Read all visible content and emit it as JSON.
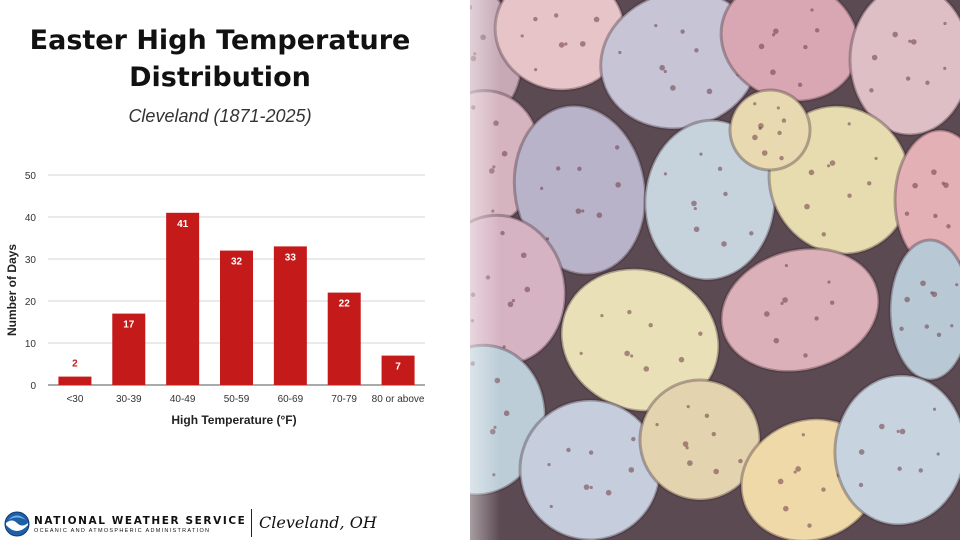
{
  "page": {
    "title_line1": "Easter High Temperature",
    "title_line2": "Distribution",
    "subtitle": "Cleveland (1871-2025)"
  },
  "chart_data": {
    "type": "bar",
    "categories": [
      "<30",
      "30-39",
      "40-49",
      "50-59",
      "60-69",
      "70-79",
      "80 or above"
    ],
    "values": [
      2,
      17,
      41,
      32,
      33,
      22,
      7
    ],
    "xlabel": "High Temperature (°F)",
    "ylabel": "Number of Days",
    "ylim": [
      0,
      50
    ],
    "yticks": [
      0,
      10,
      20,
      30,
      40,
      50
    ],
    "grid": true,
    "legend": "none",
    "bar_color": "#c41a1a",
    "label_color_inside": "#ffffff",
    "label_color_outside": "#c41a1a"
  },
  "footer": {
    "org_name": "NATIONAL WEATHER SERVICE",
    "org_sub": "OCEANIC AND ATMOSPHERIC ADMINISTRATION",
    "office": "Cleveland, OH",
    "logo_icon": "noaa-logo-icon"
  },
  "photo": {
    "icon": "easter-eggs-photo"
  }
}
